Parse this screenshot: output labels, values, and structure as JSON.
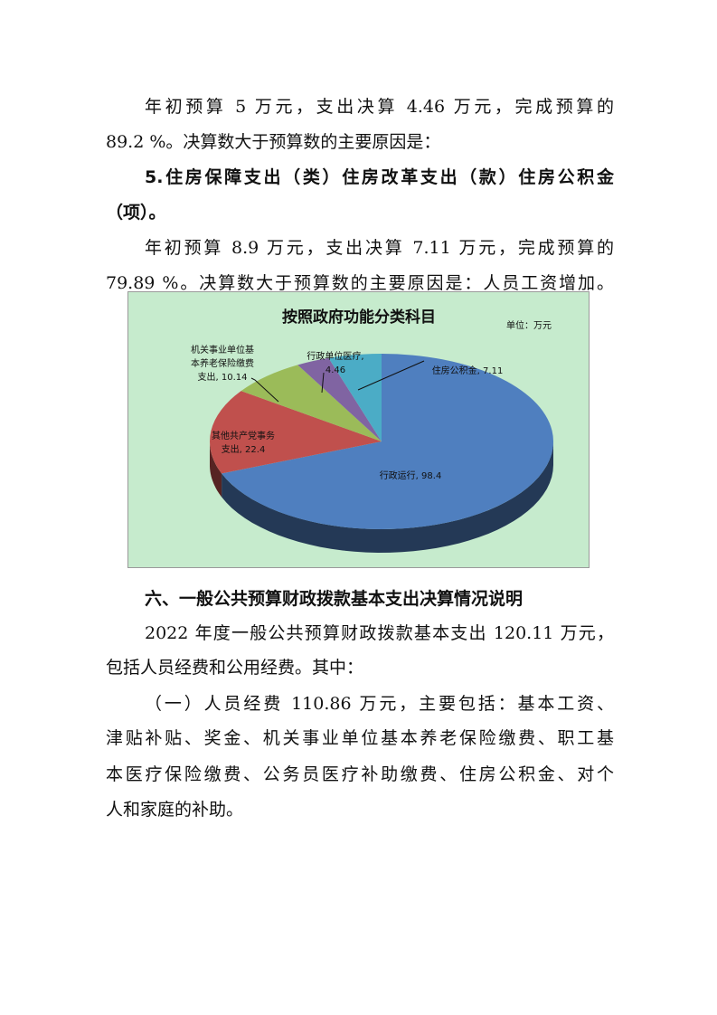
{
  "paragraphs_top": [
    {
      "text": "年初预算  5 万元，支出决算 4.46 万元，完成预算的",
      "style": "indent"
    },
    {
      "text": "89.2 %。决算数大于预算数的主要原因是：",
      "style": "plain"
    },
    {
      "text": "5.住房保障支出（类）住房改革支出（款）住房公积金",
      "style": "indent-bold"
    },
    {
      "text": "（项）。",
      "style": "plain"
    },
    {
      "text": "年初预算 8.9 万元，支出决算 7.11 万元，完成预算的",
      "style": "indent"
    },
    {
      "text": "79.89 %。决算数大于预算数的主要原因是：人员工资增加。",
      "style": "plain"
    }
  ],
  "chart_data": {
    "type": "pie",
    "style": "3d",
    "title": "按照政府功能分类科目",
    "unit_note": "单位：万元",
    "background": "#c6ebcd",
    "slices": [
      {
        "label": "行政运行",
        "value": 98.4,
        "color": "#4f7fbf",
        "label_text": [
          "行政运行, 98.4"
        ]
      },
      {
        "label": "其他共产党事务支出",
        "value": 22.4,
        "color": "#c0504d",
        "label_text": [
          "其他共产党事务",
          "支出, 22.4"
        ]
      },
      {
        "label": "机关事业单位基本养老保险缴费支出",
        "value": 10.14,
        "color": "#9bbb59",
        "label_text": [
          "机关事业单位基",
          "本养老保险缴费",
          "支出, 10.14"
        ]
      },
      {
        "label": "行政单位医疗",
        "value": 4.46,
        "color": "#8064a2",
        "label_text": [
          "行政单位医疗,",
          "4.46"
        ]
      },
      {
        "label": "住房公积金",
        "value": 7.11,
        "color": "#4bacc6",
        "label_text": [
          "住房公积金, 7.11"
        ]
      }
    ]
  },
  "section_heading": "六、一般公共预算财政拨款基本支出决算情况说明",
  "paragraphs_bottom": [
    {
      "text": "2022 年度一般公共预算财政拨款基本支出 120.11 万元，",
      "style": "indent"
    },
    {
      "text": "包括人员经费和公用经费。其中：",
      "style": "plain"
    },
    {
      "text": "（一）人员经费 110.86 万元，主要包括：基本工资、",
      "style": "indent"
    },
    {
      "text": "津贴补贴、奖金、机关事业单位基本养老保险缴费、职工基",
      "style": "plain"
    },
    {
      "text": "本医疗保险缴费、公务员医疗补助缴费、住房公积金、对个",
      "style": "plain"
    },
    {
      "text": "人和家庭的补助。",
      "style": "plain"
    }
  ]
}
